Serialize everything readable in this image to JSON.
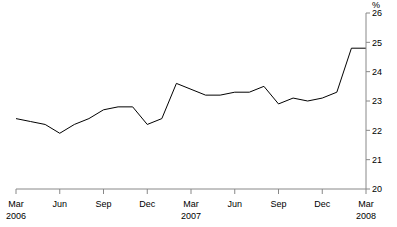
{
  "chart_data": {
    "type": "line",
    "y_label": "%",
    "categories": [
      "Mar 2006",
      null,
      null,
      "Jun",
      null,
      null,
      "Sep",
      null,
      null,
      "Dec",
      null,
      null,
      "Mar 2007",
      null,
      null,
      "Jun",
      null,
      null,
      "Sep",
      null,
      null,
      "Dec",
      null,
      null,
      "Mar 2008"
    ],
    "values": [
      22.4,
      22.3,
      22.2,
      21.9,
      22.2,
      22.4,
      22.7,
      22.8,
      22.8,
      22.2,
      22.4,
      23.6,
      23.4,
      23.2,
      23.2,
      23.3,
      23.3,
      23.5,
      22.9,
      23.1,
      23.0,
      23.1,
      23.3,
      24.8,
      24.8
    ],
    "color": "#000000",
    "ylim": [
      20,
      26
    ],
    "yticks": [
      20,
      21,
      22,
      23,
      24,
      25,
      26
    ],
    "grid": false
  }
}
